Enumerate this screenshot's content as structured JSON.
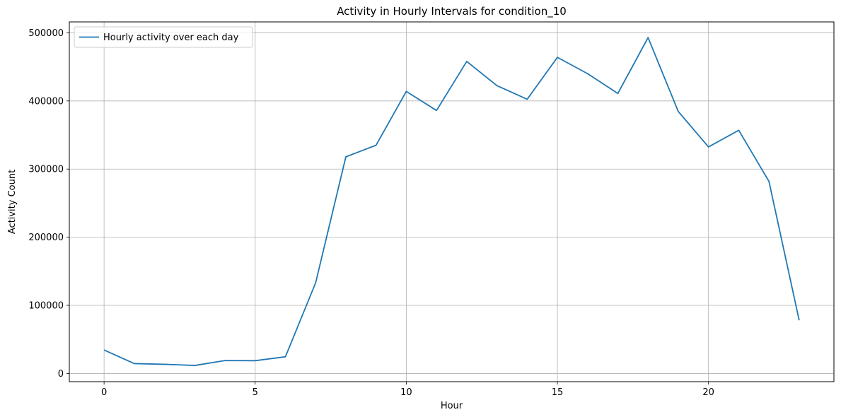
{
  "chart_data": {
    "type": "line",
    "title": "Activity in Hourly Intervals for condition_10",
    "xlabel": "Hour",
    "ylabel": "Activity Count",
    "xlim": [
      -1.15,
      24.15
    ],
    "ylim": [
      -12000,
      516000
    ],
    "x_ticks": [
      0,
      5,
      10,
      15,
      20
    ],
    "y_ticks": [
      0,
      100000,
      200000,
      300000,
      400000,
      500000
    ],
    "x_tick_labels": [
      "0",
      "5",
      "10",
      "15",
      "20"
    ],
    "y_tick_labels": [
      "0",
      "100000",
      "200000",
      "300000",
      "400000",
      "500000"
    ],
    "grid": true,
    "legend_position": "top-left",
    "series": [
      {
        "name": "Hourly activity over each day",
        "color": "#1f77b4",
        "x": [
          0,
          1,
          2,
          3,
          4,
          5,
          6,
          7,
          8,
          9,
          10,
          11,
          12,
          13,
          14,
          15,
          16,
          17,
          18,
          19,
          20,
          21,
          22,
          23
        ],
        "values": [
          34500,
          14500,
          13500,
          11800,
          19000,
          18800,
          24500,
          133000,
          318000,
          335000,
          414000,
          386000,
          458000,
          422500,
          402500,
          464000,
          440000,
          411000,
          493000,
          384500,
          332500,
          357000,
          282000,
          78000
        ]
      }
    ]
  }
}
